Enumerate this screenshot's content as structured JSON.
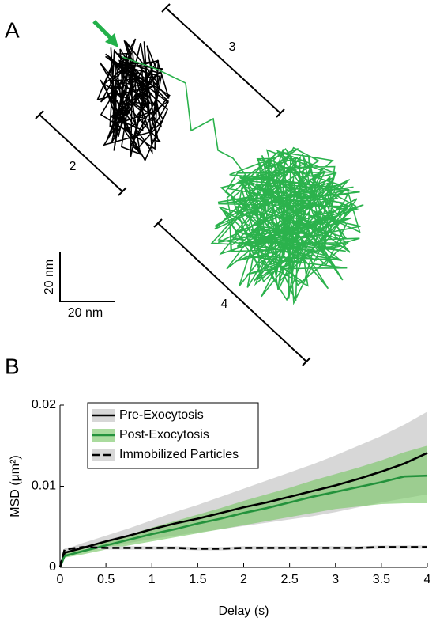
{
  "panel_a": {
    "panel_label": "A",
    "distance_labels": [
      "2",
      "3",
      "4"
    ],
    "scale_y_label": "20 nm",
    "scale_x_label": "20 nm"
  },
  "chart_data": {
    "type": "line",
    "panel_label": "B",
    "x_label": "Delay (s)",
    "y_label": "MSD (μm²)",
    "x": [
      0,
      0.05,
      0.25,
      0.5,
      0.75,
      1,
      1.25,
      1.5,
      1.75,
      2,
      2.25,
      2.5,
      2.75,
      3,
      3.25,
      3.5,
      3.75,
      4
    ],
    "xlim": [
      0,
      4
    ],
    "xticks": [
      0,
      0.5,
      1,
      1.5,
      2,
      2.5,
      3,
      3.5,
      4
    ],
    "ylim": [
      0,
      0.02
    ],
    "yticks": [
      0,
      0.01,
      0.02
    ],
    "legend": "upper left",
    "series": [
      {
        "name": "Pre-Exocytosis",
        "color": "#000000",
        "band_color": "#d3d3d3",
        "dash": false,
        "values": [
          0,
          0.0018,
          0.0024,
          0.0032,
          0.0039,
          0.0047,
          0.0054,
          0.006,
          0.0067,
          0.0074,
          0.008,
          0.0087,
          0.0094,
          0.0101,
          0.0109,
          0.0118,
          0.0128,
          0.0141
        ],
        "lower": [
          0,
          0.0014,
          0.0019,
          0.0025,
          0.003,
          0.0035,
          0.0039,
          0.0043,
          0.0047,
          0.0051,
          0.0055,
          0.0059,
          0.0063,
          0.0068,
          0.0074,
          0.008,
          0.0085,
          0.009
        ],
        "upper": [
          0,
          0.0022,
          0.003,
          0.0039,
          0.0048,
          0.0058,
          0.0068,
          0.0077,
          0.0087,
          0.0097,
          0.0107,
          0.0117,
          0.0127,
          0.0138,
          0.015,
          0.0162,
          0.0176,
          0.0192
        ]
      },
      {
        "name": "Post-Exocytosis",
        "color": "#23923c",
        "band_color": "#7cc86a",
        "dash": false,
        "values": [
          0,
          0.0014,
          0.002,
          0.0027,
          0.0034,
          0.0041,
          0.0047,
          0.0054,
          0.006,
          0.0067,
          0.0073,
          0.008,
          0.0087,
          0.0093,
          0.0099,
          0.0105,
          0.0112,
          0.0113
        ],
        "lower": [
          0,
          0.0012,
          0.0016,
          0.0022,
          0.0027,
          0.0032,
          0.0037,
          0.0042,
          0.0047,
          0.0052,
          0.0057,
          0.0062,
          0.0067,
          0.0072,
          0.0075,
          0.0078,
          0.0079,
          0.0079
        ],
        "upper": [
          0,
          0.0017,
          0.0024,
          0.0032,
          0.004,
          0.0049,
          0.0057,
          0.0065,
          0.0073,
          0.0082,
          0.009,
          0.0098,
          0.0107,
          0.0115,
          0.0123,
          0.0132,
          0.0142,
          0.015
        ]
      },
      {
        "name": "Immobilized Particles",
        "color": "#000000",
        "band_color": "#d3d3d3",
        "dash": true,
        "values": [
          0,
          0.0022,
          0.0025,
          0.0024,
          0.0024,
          0.0024,
          0.0024,
          0.0023,
          0.0023,
          0.0024,
          0.0024,
          0.0024,
          0.0024,
          0.0024,
          0.0024,
          0.0025,
          0.0025,
          0.0025
        ],
        "lower": [
          0,
          0.002,
          0.0023,
          0.0022,
          0.0022,
          0.0022,
          0.0022,
          0.0021,
          0.0021,
          0.0022,
          0.0022,
          0.0022,
          0.0022,
          0.0022,
          0.0022,
          0.0023,
          0.0023,
          0.0023
        ],
        "upper": [
          0,
          0.0024,
          0.0027,
          0.0026,
          0.0026,
          0.0026,
          0.0026,
          0.0025,
          0.0025,
          0.0026,
          0.0026,
          0.0026,
          0.0026,
          0.0026,
          0.0026,
          0.0027,
          0.0027,
          0.0027
        ]
      }
    ]
  }
}
